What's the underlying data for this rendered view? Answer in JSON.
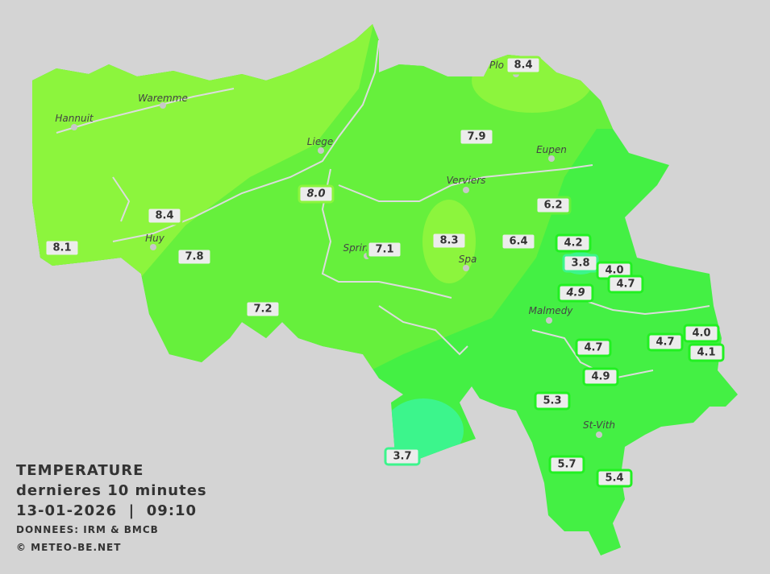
{
  "legend": {
    "title": "TEMPERATURE",
    "subtitle": "dernieres 10 minutes",
    "datetime": "13-01-2026  |  09:10",
    "source": "DONNEES: IRM & BMCB",
    "copyright": "© METEO-BE.NET"
  },
  "colors": {
    "background": "#d4d4d4",
    "zone_8": "#8cf53d",
    "zone_6_7": "#66f03c",
    "zone_4_5": "#44f044",
    "zone_3": "#3cf58c",
    "label_bg": "#ececec"
  },
  "cities": [
    "Hannuit",
    "Waremme",
    "Liege",
    "Eupen",
    "Verviers",
    "Huy",
    "Sprin",
    "Spa",
    "Malmedy",
    "St-Vith",
    "Plo"
  ],
  "stations": [
    {
      "value": "8.4",
      "italic": false,
      "border": "#8cf53d"
    },
    {
      "value": "7.9",
      "italic": false,
      "border": "#66f03c"
    },
    {
      "value": "8.0",
      "italic": true,
      "border": "#8cf53d"
    },
    {
      "value": "6.2",
      "italic": false,
      "border": "#66f03c"
    },
    {
      "value": "8.4",
      "italic": false,
      "border": "#8cf53d"
    },
    {
      "value": "8.1",
      "italic": false,
      "border": "#8cf53d"
    },
    {
      "value": "7.1",
      "italic": false,
      "border": "#66f03c"
    },
    {
      "value": "8.3",
      "italic": false,
      "border": "#8cf53d"
    },
    {
      "value": "6.4",
      "italic": false,
      "border": "#66f03c"
    },
    {
      "value": "4.2",
      "italic": false,
      "border": "#22f022"
    },
    {
      "value": "3.8",
      "italic": false,
      "border": "#3cf58c"
    },
    {
      "value": "4.0",
      "italic": false,
      "border": "#22f022"
    },
    {
      "value": "4.7",
      "italic": false,
      "border": "#22f022"
    },
    {
      "value": "7.8",
      "italic": false,
      "border": "#66f03c"
    },
    {
      "value": "4.9",
      "italic": true,
      "border": "#22f022"
    },
    {
      "value": "7.2",
      "italic": false,
      "border": "#66f03c"
    },
    {
      "value": "4.7",
      "italic": false,
      "border": "#22f022"
    },
    {
      "value": "4.0",
      "italic": false,
      "border": "#22f022"
    },
    {
      "value": "4.1",
      "italic": false,
      "border": "#22f022"
    },
    {
      "value": "4.7",
      "italic": false,
      "border": "#22f022"
    },
    {
      "value": "4.9",
      "italic": false,
      "border": "#22f022"
    },
    {
      "value": "5.3",
      "italic": false,
      "border": "#22f022"
    },
    {
      "value": "3.7",
      "italic": false,
      "border": "#3cf58c"
    },
    {
      "value": "5.7",
      "italic": false,
      "border": "#22f022"
    },
    {
      "value": "5.4",
      "italic": false,
      "border": "#22f022"
    }
  ]
}
